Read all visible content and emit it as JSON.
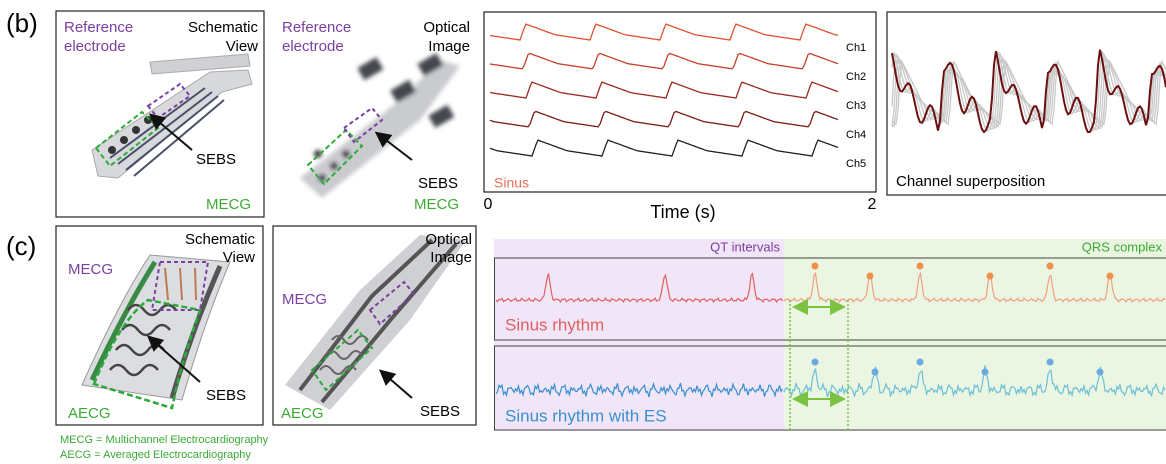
{
  "panel_b": {
    "label": "(b)",
    "schematic": {
      "reference_label": [
        "Reference",
        "electrode"
      ],
      "view_label": [
        "Schematic",
        "View"
      ],
      "material": "SEBS",
      "mode": "MECG"
    },
    "optical": {
      "reference_label": [
        "Reference",
        "electrode"
      ],
      "view_label": [
        "Optical",
        "Image"
      ],
      "material": "SEBS",
      "mode": "MECG"
    },
    "traces": {
      "channels": [
        "Ch1",
        "Ch2",
        "Ch3",
        "Ch4",
        "Ch5"
      ],
      "condition": "Sinus",
      "x_start": 0,
      "x_label": "Time (s)",
      "x_end": 2
    },
    "superposition": {
      "label": "Channel superposition"
    }
  },
  "panel_c": {
    "label": "(c)",
    "schematic": {
      "view_label": [
        "Schematic",
        "View"
      ],
      "top": "MECG",
      "material": "SEBS",
      "bottom": "AECG"
    },
    "optical": {
      "view_label": [
        "Optical",
        "Image"
      ],
      "top": "MECG",
      "material": "SEBS",
      "bottom": "AECG"
    },
    "regions": {
      "left": "QT intervals",
      "right": "QRS complex"
    },
    "rhythms": [
      "Sinus rhythm",
      "Sinus rhythm with ES"
    ]
  },
  "footnotes": [
    "MECG = Multichannel Electrocardiography",
    "AECG = Averaged Electrocardiography"
  ]
}
